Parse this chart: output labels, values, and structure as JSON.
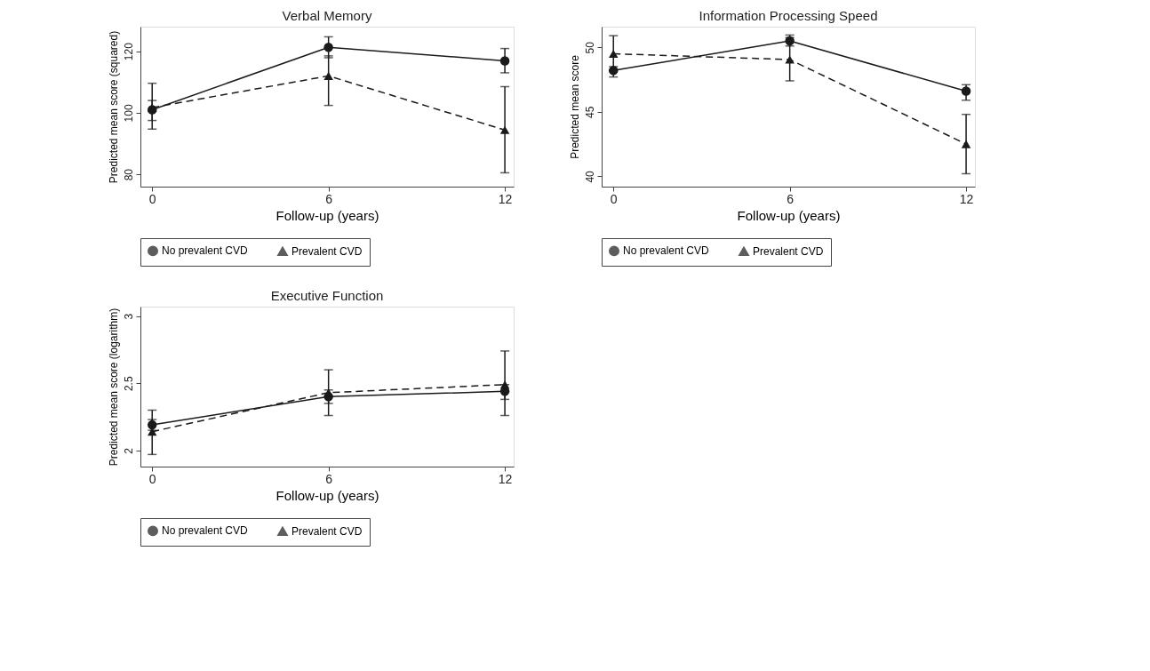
{
  "chart_data": [
    {
      "type": "line",
      "title": "Verbal Memory",
      "xlabel": "Follow-up (years)",
      "ylabel": "Predicted mean score (squared)",
      "x": [
        0,
        6,
        12
      ],
      "xlim": [
        -0.4,
        12.3
      ],
      "xticks": [
        0,
        6,
        12
      ],
      "ylim": [
        76,
        128
      ],
      "yticks": [
        80,
        100,
        120
      ],
      "grid": false,
      "legend": "bottom",
      "series": [
        {
          "name": "No prevalent CVD",
          "color": "#1a1a1a",
          "marker": "circle",
          "line_style": "solid",
          "values": [
            101,
            121.3,
            116.9
          ],
          "errors": [
            [
              97.5,
              104
            ],
            [
              117.9,
              124.7
            ],
            [
              113,
              120.9
            ]
          ]
        },
        {
          "name": "Prevalent CVD",
          "color": "#1a1a1a",
          "marker": "triangle",
          "line_style": "dashed",
          "values": [
            101.7,
            112,
            94.4
          ],
          "errors": [
            [
              94.7,
              109.6
            ],
            [
              102.4,
              118.5
            ],
            [
              80.5,
              108.5
            ]
          ]
        }
      ]
    },
    {
      "type": "line",
      "title": "Information Processing Speed",
      "xlabel": "Follow-up (years)",
      "ylabel": "Predicted mean score",
      "x": [
        0,
        6,
        12
      ],
      "xlim": [
        -0.4,
        12.3
      ],
      "xticks": [
        0,
        6,
        12
      ],
      "ylim": [
        39.2,
        51.6
      ],
      "yticks": [
        40,
        45,
        50
      ],
      "grid": false,
      "legend": "bottom",
      "series": [
        {
          "name": "No prevalent CVD",
          "color": "#1a1a1a",
          "marker": "circle",
          "line_style": "solid",
          "values": [
            48.2,
            50.5,
            46.6
          ],
          "errors": [
            [
              47.7,
              48.5
            ],
            [
              50.1,
              50.95
            ],
            [
              45.9,
              47.1
            ]
          ]
        },
        {
          "name": "Prevalent CVD",
          "color": "#1a1a1a",
          "marker": "triangle",
          "line_style": "dashed",
          "values": [
            49.5,
            49.05,
            42.5
          ],
          "errors": [
            [
              48.1,
              50.9
            ],
            [
              47.4,
              50.75
            ],
            [
              40.2,
              44.8
            ]
          ]
        }
      ]
    },
    {
      "type": "line",
      "title": "Executive Function",
      "xlabel": "Follow-up (years)",
      "ylabel": "Predicted mean score (logarithm)",
      "x": [
        0,
        6,
        12
      ],
      "xlim": [
        -0.4,
        12.3
      ],
      "xticks": [
        0,
        6,
        12
      ],
      "ylim": [
        1.88,
        3.07
      ],
      "yticks": [
        {
          "value": 2,
          "label": "2"
        },
        2.5,
        {
          "value": 3,
          "label": "3"
        }
      ],
      "grid": false,
      "legend": "bottom",
      "series": [
        {
          "name": "No prevalent CVD",
          "color": "#1a1a1a",
          "marker": "circle",
          "line_style": "solid",
          "values": [
            2.19,
            2.4,
            2.44
          ],
          "errors": [
            [
              2.15,
              2.23
            ],
            [
              2.35,
              2.45
            ],
            [
              2.38,
              2.49
            ]
          ]
        },
        {
          "name": "Prevalent CVD",
          "color": "#1a1a1a",
          "marker": "triangle",
          "line_style": "dashed",
          "values": [
            2.14,
            2.43,
            2.49
          ],
          "errors": [
            [
              1.97,
              2.3
            ],
            [
              2.26,
              2.6
            ],
            [
              2.26,
              2.74
            ]
          ]
        }
      ]
    }
  ]
}
